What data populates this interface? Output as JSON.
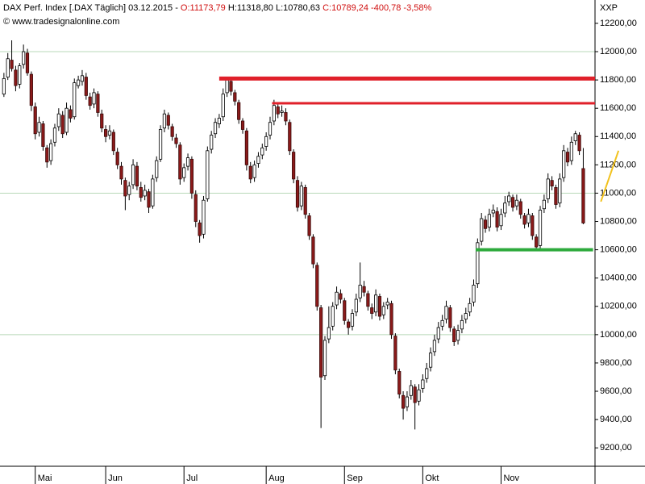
{
  "chart_data": {
    "type": "candlestick",
    "header": {
      "instrument": "DAX Perf. Index [.DAX  Täglich] 03.12.2015 -",
      "open": "O:11173,79",
      "high": "H:11318,80",
      "low": "L:10780,63",
      "close": "C:10789,24 -400,78 -3,58%"
    },
    "source": "© www.tradesignalonline.com",
    "corner_label": "XXP",
    "up_color": "#ffffff",
    "down_color": "#8b1a1a",
    "grid_color": "#b8d8b8",
    "xlim": [
      -1,
      151
    ],
    "xticks": [
      {
        "value": 8,
        "label": "Mai"
      },
      {
        "value": 26,
        "label": "Jun"
      },
      {
        "value": 46,
        "label": "Jul"
      },
      {
        "value": 67,
        "label": "Aug"
      },
      {
        "value": 87,
        "label": "Sep"
      },
      {
        "value": 107,
        "label": "Okt"
      },
      {
        "value": 127,
        "label": "Nov"
      }
    ],
    "ylim": [
      9070,
      12365
    ],
    "yticks": [
      {
        "value": 9200,
        "label": "9200,00"
      },
      {
        "value": 9400,
        "label": "9400,00"
      },
      {
        "value": 9600,
        "label": "9600,00"
      },
      {
        "value": 9800,
        "label": "9800,00"
      },
      {
        "value": 10000,
        "label": "10000,00"
      },
      {
        "value": 10200,
        "label": "10200,00"
      },
      {
        "value": 10400,
        "label": "10400,00"
      },
      {
        "value": 10600,
        "label": "10600,00"
      },
      {
        "value": 10800,
        "label": "10800,00"
      },
      {
        "value": 11000,
        "label": "11000,00"
      },
      {
        "value": 11200,
        "label": "11200,00"
      },
      {
        "value": 11400,
        "label": "11400,00"
      },
      {
        "value": 11600,
        "label": "11600,00"
      },
      {
        "value": 11800,
        "label": "11800,00"
      },
      {
        "value": 12000,
        "label": "12000,00"
      },
      {
        "value": 12200,
        "label": "12200,00"
      }
    ],
    "ygrid": [
      10000,
      11000,
      12000
    ],
    "annotations": [
      {
        "x": [
          55,
          151
        ],
        "y": [
          11810,
          11810
        ],
        "color": "#e0202a"
      },
      {
        "x": [
          68.5,
          151
        ],
        "y": [
          11635,
          11635
        ],
        "color": "#e0202a"
      },
      {
        "x": [
          120.5,
          150.5
        ],
        "y": [
          10600,
          10600
        ],
        "color": "#2eaa3c"
      },
      {
        "x": [
          152.5,
          157
        ],
        "y": [
          10940,
          11300
        ],
        "color": "#f2c21e"
      }
    ],
    "candles": [
      [
        11700,
        11850,
        11680,
        11810
      ],
      [
        11820,
        11990,
        11800,
        11950
      ],
      [
        11940,
        12080,
        11860,
        11880
      ],
      [
        11870,
        11900,
        11720,
        11760
      ],
      [
        11770,
        11920,
        11740,
        11900
      ],
      [
        11910,
        12050,
        11880,
        12000
      ],
      [
        11990,
        12020,
        11830,
        11850
      ],
      [
        11840,
        11860,
        11580,
        11620
      ],
      [
        11610,
        11640,
        11380,
        11420
      ],
      [
        11430,
        11540,
        11400,
        11500
      ],
      [
        11490,
        11510,
        11300,
        11330
      ],
      [
        11320,
        11340,
        11180,
        11220
      ],
      [
        11230,
        11380,
        11200,
        11350
      ],
      [
        11360,
        11490,
        11330,
        11460
      ],
      [
        11470,
        11600,
        11440,
        11560
      ],
      [
        11550,
        11580,
        11390,
        11420
      ],
      [
        11430,
        11640,
        11410,
        11600
      ],
      [
        11590,
        11620,
        11500,
        11530
      ],
      [
        11540,
        11810,
        11520,
        11780
      ],
      [
        11760,
        11830,
        11740,
        11800
      ],
      [
        11790,
        11870,
        11760,
        11830
      ],
      [
        11820,
        11850,
        11660,
        11690
      ],
      [
        11680,
        11710,
        11590,
        11620
      ],
      [
        11630,
        11740,
        11600,
        11710
      ],
      [
        11700,
        11720,
        11540,
        11570
      ],
      [
        11560,
        11590,
        11430,
        11460
      ],
      [
        11450,
        11480,
        11360,
        11400
      ],
      [
        11410,
        11480,
        11380,
        11440
      ],
      [
        11430,
        11450,
        11270,
        11300
      ],
      [
        11290,
        11320,
        11170,
        11200
      ],
      [
        11190,
        11220,
        11060,
        11100
      ],
      [
        11090,
        11110,
        10880,
        10980
      ],
      [
        10990,
        11080,
        10950,
        11050
      ],
      [
        11060,
        11240,
        11030,
        11200
      ],
      [
        11190,
        11220,
        11020,
        11050
      ],
      [
        11040,
        11080,
        10940,
        10970
      ],
      [
        10980,
        11060,
        10950,
        11020
      ],
      [
        11010,
        11030,
        10860,
        10900
      ],
      [
        10910,
        11130,
        10890,
        11100
      ],
      [
        11110,
        11260,
        11080,
        11230
      ],
      [
        11240,
        11480,
        11220,
        11450
      ],
      [
        11460,
        11590,
        11430,
        11560
      ],
      [
        11550,
        11570,
        11450,
        11480
      ],
      [
        11470,
        11490,
        11370,
        11400
      ],
      [
        11390,
        11420,
        11320,
        11350
      ],
      [
        11340,
        11360,
        11060,
        11100
      ],
      [
        11110,
        11210,
        11080,
        11180
      ],
      [
        11190,
        11280,
        11160,
        11250
      ],
      [
        11240,
        11260,
        10960,
        11000
      ],
      [
        10990,
        11020,
        10760,
        10800
      ],
      [
        10790,
        10810,
        10650,
        10700
      ],
      [
        10710,
        10980,
        10680,
        10950
      ],
      [
        10960,
        11330,
        10940,
        11300
      ],
      [
        11310,
        11440,
        11280,
        11410
      ],
      [
        11420,
        11530,
        11390,
        11500
      ],
      [
        11490,
        11560,
        11460,
        11530
      ],
      [
        11540,
        11740,
        11510,
        11700
      ],
      [
        11710,
        11810,
        11680,
        11800
      ],
      [
        11790,
        11810,
        11690,
        11720
      ],
      [
        11710,
        11730,
        11620,
        11650
      ],
      [
        11640,
        11660,
        11490,
        11520
      ],
      [
        11510,
        11530,
        11420,
        11450
      ],
      [
        11440,
        11460,
        11160,
        11200
      ],
      [
        11190,
        11220,
        11070,
        11100
      ],
      [
        11110,
        11230,
        11080,
        11200
      ],
      [
        11210,
        11290,
        11180,
        11260
      ],
      [
        11270,
        11350,
        11240,
        11320
      ],
      [
        11330,
        11430,
        11300,
        11400
      ],
      [
        11410,
        11540,
        11380,
        11500
      ],
      [
        11510,
        11660,
        11480,
        11620
      ],
      [
        11610,
        11640,
        11530,
        11560
      ],
      [
        11570,
        11620,
        11540,
        11580
      ],
      [
        11570,
        11600,
        11480,
        11510
      ],
      [
        11500,
        11520,
        11270,
        11300
      ],
      [
        11290,
        11310,
        11070,
        11100
      ],
      [
        11090,
        11120,
        10870,
        10900
      ],
      [
        10910,
        11080,
        10880,
        11050
      ],
      [
        11040,
        11060,
        10820,
        10850
      ],
      [
        10840,
        10860,
        10670,
        10700
      ],
      [
        10690,
        10710,
        10470,
        10500
      ],
      [
        10490,
        10510,
        10170,
        10200
      ],
      [
        10190,
        10210,
        9340,
        9700
      ],
      [
        9710,
        9990,
        9680,
        9960
      ],
      [
        9970,
        10200,
        9940,
        10050
      ],
      [
        10060,
        10230,
        10030,
        10200
      ],
      [
        10210,
        10340,
        10180,
        10300
      ],
      [
        10290,
        10320,
        10220,
        10250
      ],
      [
        10240,
        10260,
        10070,
        10100
      ],
      [
        10090,
        10110,
        10000,
        10050
      ],
      [
        10060,
        10180,
        10030,
        10150
      ],
      [
        10160,
        10290,
        10130,
        10250
      ],
      [
        10260,
        10510,
        10230,
        10350
      ],
      [
        10340,
        10380,
        10270,
        10300
      ],
      [
        10290,
        10310,
        10170,
        10200
      ],
      [
        10190,
        10220,
        10110,
        10150
      ],
      [
        10160,
        10320,
        10130,
        10280
      ],
      [
        10270,
        10290,
        10100,
        10130
      ],
      [
        10140,
        10230,
        10110,
        10200
      ],
      [
        10210,
        10260,
        10180,
        10230
      ],
      [
        10220,
        10240,
        9970,
        10000
      ],
      [
        9990,
        10010,
        9720,
        9750
      ],
      [
        9740,
        9760,
        9550,
        9580
      ],
      [
        9570,
        9600,
        9400,
        9480
      ],
      [
        9490,
        9600,
        9460,
        9560
      ],
      [
        9570,
        9680,
        9540,
        9640
      ],
      [
        9630,
        9650,
        9330,
        9520
      ],
      [
        9530,
        9650,
        9500,
        9610
      ],
      [
        9620,
        9720,
        9590,
        9680
      ],
      [
        9690,
        9800,
        9660,
        9760
      ],
      [
        9770,
        9910,
        9740,
        9870
      ],
      [
        9880,
        10000,
        9850,
        9960
      ],
      [
        9970,
        10090,
        9940,
        10050
      ],
      [
        10060,
        10140,
        10030,
        10100
      ],
      [
        10110,
        10240,
        10080,
        10200
      ],
      [
        10190,
        10210,
        10020,
        10050
      ],
      [
        10040,
        10060,
        9920,
        9950
      ],
      [
        9960,
        10070,
        9930,
        10030
      ],
      [
        10040,
        10140,
        10010,
        10100
      ],
      [
        10110,
        10190,
        10080,
        10150
      ],
      [
        10160,
        10260,
        10130,
        10220
      ],
      [
        10230,
        10390,
        10200,
        10350
      ],
      [
        10360,
        10680,
        10330,
        10650
      ],
      [
        10660,
        10860,
        10630,
        10820
      ],
      [
        10810,
        10840,
        10720,
        10750
      ],
      [
        10760,
        10890,
        10730,
        10850
      ],
      [
        10860,
        10920,
        10830,
        10880
      ],
      [
        10870,
        10900,
        10730,
        10760
      ],
      [
        10770,
        10890,
        10740,
        10850
      ],
      [
        10860,
        10980,
        10830,
        10930
      ],
      [
        10940,
        11010,
        10910,
        10980
      ],
      [
        10970,
        10990,
        10870,
        10900
      ],
      [
        10910,
        10990,
        10880,
        10950
      ],
      [
        10940,
        10960,
        10820,
        10850
      ],
      [
        10840,
        10860,
        10750,
        10780
      ],
      [
        10790,
        10890,
        10760,
        10850
      ],
      [
        10840,
        10860,
        10670,
        10700
      ],
      [
        10690,
        10710,
        10600,
        10620
      ],
      [
        10630,
        10910,
        10600,
        10880
      ],
      [
        10890,
        10990,
        10860,
        10950
      ],
      [
        10960,
        11140,
        10930,
        11100
      ],
      [
        11090,
        11120,
        11020,
        11050
      ],
      [
        11040,
        11060,
        10890,
        10920
      ],
      [
        10930,
        11140,
        10900,
        11100
      ],
      [
        11110,
        11340,
        11080,
        11300
      ],
      [
        11290,
        11320,
        11190,
        11220
      ],
      [
        11230,
        11400,
        11200,
        11360
      ],
      [
        11370,
        11440,
        11340,
        11420
      ],
      [
        11410,
        11430,
        11270,
        11300
      ],
      [
        11173.79,
        11318.8,
        10780.63,
        10789.24
      ]
    ]
  }
}
